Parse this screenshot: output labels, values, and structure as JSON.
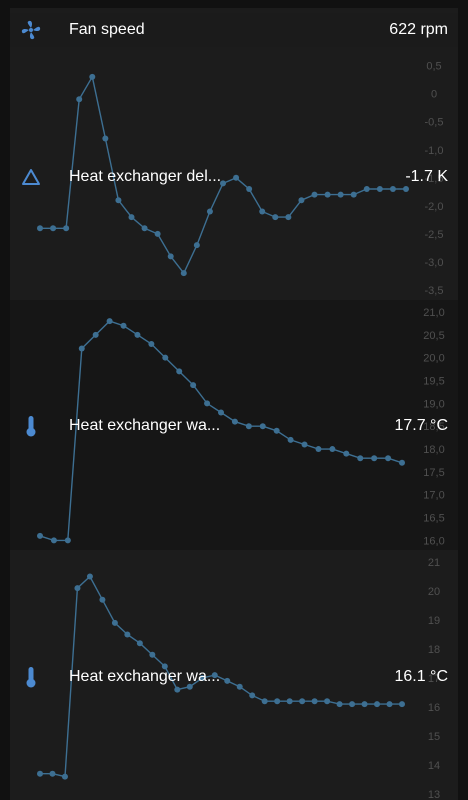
{
  "theme": {
    "line_color": "#3d6f92",
    "icon_color": "#4c8ad1",
    "tick_color": "#505050"
  },
  "sensors": [
    {
      "name": "Fan speed",
      "value": "622 rpm",
      "icon": "fan-icon"
    },
    {
      "name": "Heat exchanger del...",
      "value": "-1.7 K",
      "icon": "delta-icon"
    },
    {
      "name": "Heat exchanger wa...",
      "value": "17.7 °C",
      "icon": "thermometer-icon"
    },
    {
      "name": "Heat exchanger wa...",
      "value": "16.1 °C",
      "icon": "thermometer-icon"
    }
  ],
  "chart_data": [
    {
      "type": "line",
      "title": "",
      "ylim": [
        -3.5,
        0.6
      ],
      "yticks": [
        "0,5",
        "0",
        "-0,5",
        "-1,0",
        "-1,5",
        "-2,0",
        "-2,5",
        "-3,0",
        "-3,5"
      ],
      "ytick_values": [
        0.5,
        0,
        -0.5,
        -1.0,
        -1.5,
        -2.0,
        -2.5,
        -3.0,
        -3.5
      ],
      "values": [
        -2.4,
        -2.4,
        -2.4,
        -0.1,
        0.3,
        -0.8,
        -1.9,
        -2.2,
        -2.4,
        -2.5,
        -2.9,
        -3.2,
        -2.7,
        -2.1,
        -1.6,
        -1.5,
        -1.7,
        -2.1,
        -2.2,
        -2.2,
        -1.9,
        -1.8,
        -1.8,
        -1.8,
        -1.8,
        -1.7,
        -1.7,
        -1.7,
        -1.7
      ]
    },
    {
      "type": "line",
      "title": "",
      "ylim": [
        15.9,
        21.0
      ],
      "yticks": [
        "21,0",
        "20,5",
        "20,0",
        "19,5",
        "19,0",
        "18,5",
        "18,0",
        "17,5",
        "17,0",
        "16,5",
        "16,0"
      ],
      "ytick_values": [
        21.0,
        20.5,
        20.0,
        19.5,
        19.0,
        18.5,
        18.0,
        17.5,
        17.0,
        16.5,
        16.0
      ],
      "values": [
        16.1,
        16.0,
        16.0,
        20.2,
        20.5,
        20.8,
        20.7,
        20.5,
        20.3,
        20.0,
        19.7,
        19.4,
        19.0,
        18.8,
        18.6,
        18.5,
        18.5,
        18.4,
        18.2,
        18.1,
        18.0,
        18.0,
        17.9,
        17.8,
        17.8,
        17.8,
        17.7
      ]
    },
    {
      "type": "line",
      "title": "",
      "ylim": [
        13,
        21
      ],
      "yticks": [
        "21",
        "20",
        "19",
        "18",
        "17",
        "16",
        "15",
        "14",
        "13"
      ],
      "ytick_values": [
        21,
        20,
        19,
        18,
        17,
        16,
        15,
        14,
        13
      ],
      "values": [
        13.7,
        13.7,
        13.6,
        20.1,
        20.5,
        19.7,
        18.9,
        18.5,
        18.2,
        17.8,
        17.4,
        16.6,
        16.7,
        17.0,
        17.1,
        16.9,
        16.7,
        16.4,
        16.2,
        16.2,
        16.2,
        16.2,
        16.2,
        16.2,
        16.1,
        16.1,
        16.1,
        16.1,
        16.1,
        16.1
      ]
    }
  ]
}
